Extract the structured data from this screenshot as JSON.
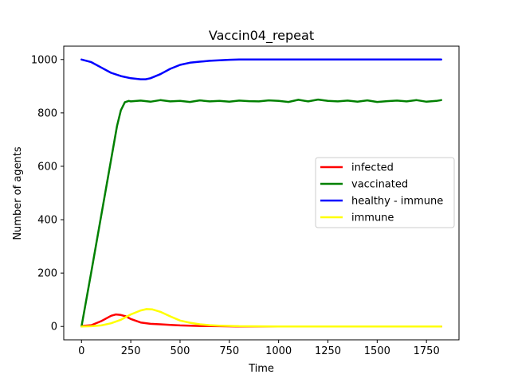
{
  "chart_data": {
    "type": "line",
    "title": "Vaccin04_repeat",
    "xlabel": "Time",
    "ylabel": "Number of agents",
    "xlim": [
      -90,
      1915
    ],
    "ylim": [
      -50,
      1050
    ],
    "xticks": [
      0,
      250,
      500,
      750,
      1000,
      1250,
      1500,
      1750
    ],
    "yticks": [
      0,
      200,
      400,
      600,
      800,
      1000
    ],
    "grid": false,
    "legend_position": "center-right",
    "series": [
      {
        "name": "infected",
        "color": "#ff0000",
        "x": [
          0,
          50,
          100,
          150,
          175,
          200,
          225,
          250,
          300,
          350,
          400,
          450,
          500,
          600,
          700,
          800,
          1000,
          1250,
          1500,
          1825
        ],
        "y": [
          2,
          5,
          20,
          40,
          45,
          43,
          38,
          28,
          15,
          10,
          8,
          6,
          4,
          2,
          1,
          0,
          0,
          0,
          0,
          0
        ]
      },
      {
        "name": "vaccinated",
        "color": "#008000",
        "x": [
          0,
          50,
          100,
          150,
          180,
          200,
          220,
          240,
          250,
          300,
          350,
          400,
          450,
          500,
          550,
          600,
          650,
          700,
          750,
          800,
          850,
          900,
          950,
          1000,
          1050,
          1100,
          1150,
          1200,
          1250,
          1300,
          1350,
          1400,
          1450,
          1500,
          1550,
          1600,
          1650,
          1700,
          1750,
          1800,
          1825
        ],
        "y": [
          0,
          205,
          415,
          625,
          750,
          810,
          840,
          845,
          843,
          846,
          842,
          848,
          843,
          845,
          841,
          847,
          843,
          845,
          842,
          846,
          844,
          843,
          847,
          845,
          841,
          849,
          843,
          850,
          845,
          843,
          846,
          842,
          847,
          841,
          844,
          846,
          843,
          848,
          842,
          845,
          848
        ]
      },
      {
        "name": "healthy - immune",
        "color": "#0000ff",
        "x": [
          0,
          50,
          100,
          150,
          200,
          250,
          300,
          325,
          350,
          400,
          450,
          500,
          550,
          600,
          650,
          700,
          750,
          800,
          900,
          1000,
          1250,
          1500,
          1825
        ],
        "y": [
          1000,
          990,
          970,
          950,
          938,
          930,
          926,
          926,
          930,
          945,
          965,
          980,
          988,
          992,
          995,
          997,
          999,
          1000,
          1000,
          1000,
          1000,
          1000,
          1000
        ]
      },
      {
        "name": "immune",
        "color": "#ffff00",
        "x": [
          0,
          50,
          100,
          150,
          200,
          250,
          300,
          330,
          360,
          400,
          450,
          500,
          550,
          600,
          650,
          700,
          800,
          1000,
          1250,
          1500,
          1825
        ],
        "y": [
          0,
          1,
          4,
          12,
          25,
          45,
          60,
          65,
          64,
          55,
          38,
          22,
          14,
          8,
          5,
          3,
          1,
          0,
          0,
          0,
          0
        ]
      }
    ]
  }
}
